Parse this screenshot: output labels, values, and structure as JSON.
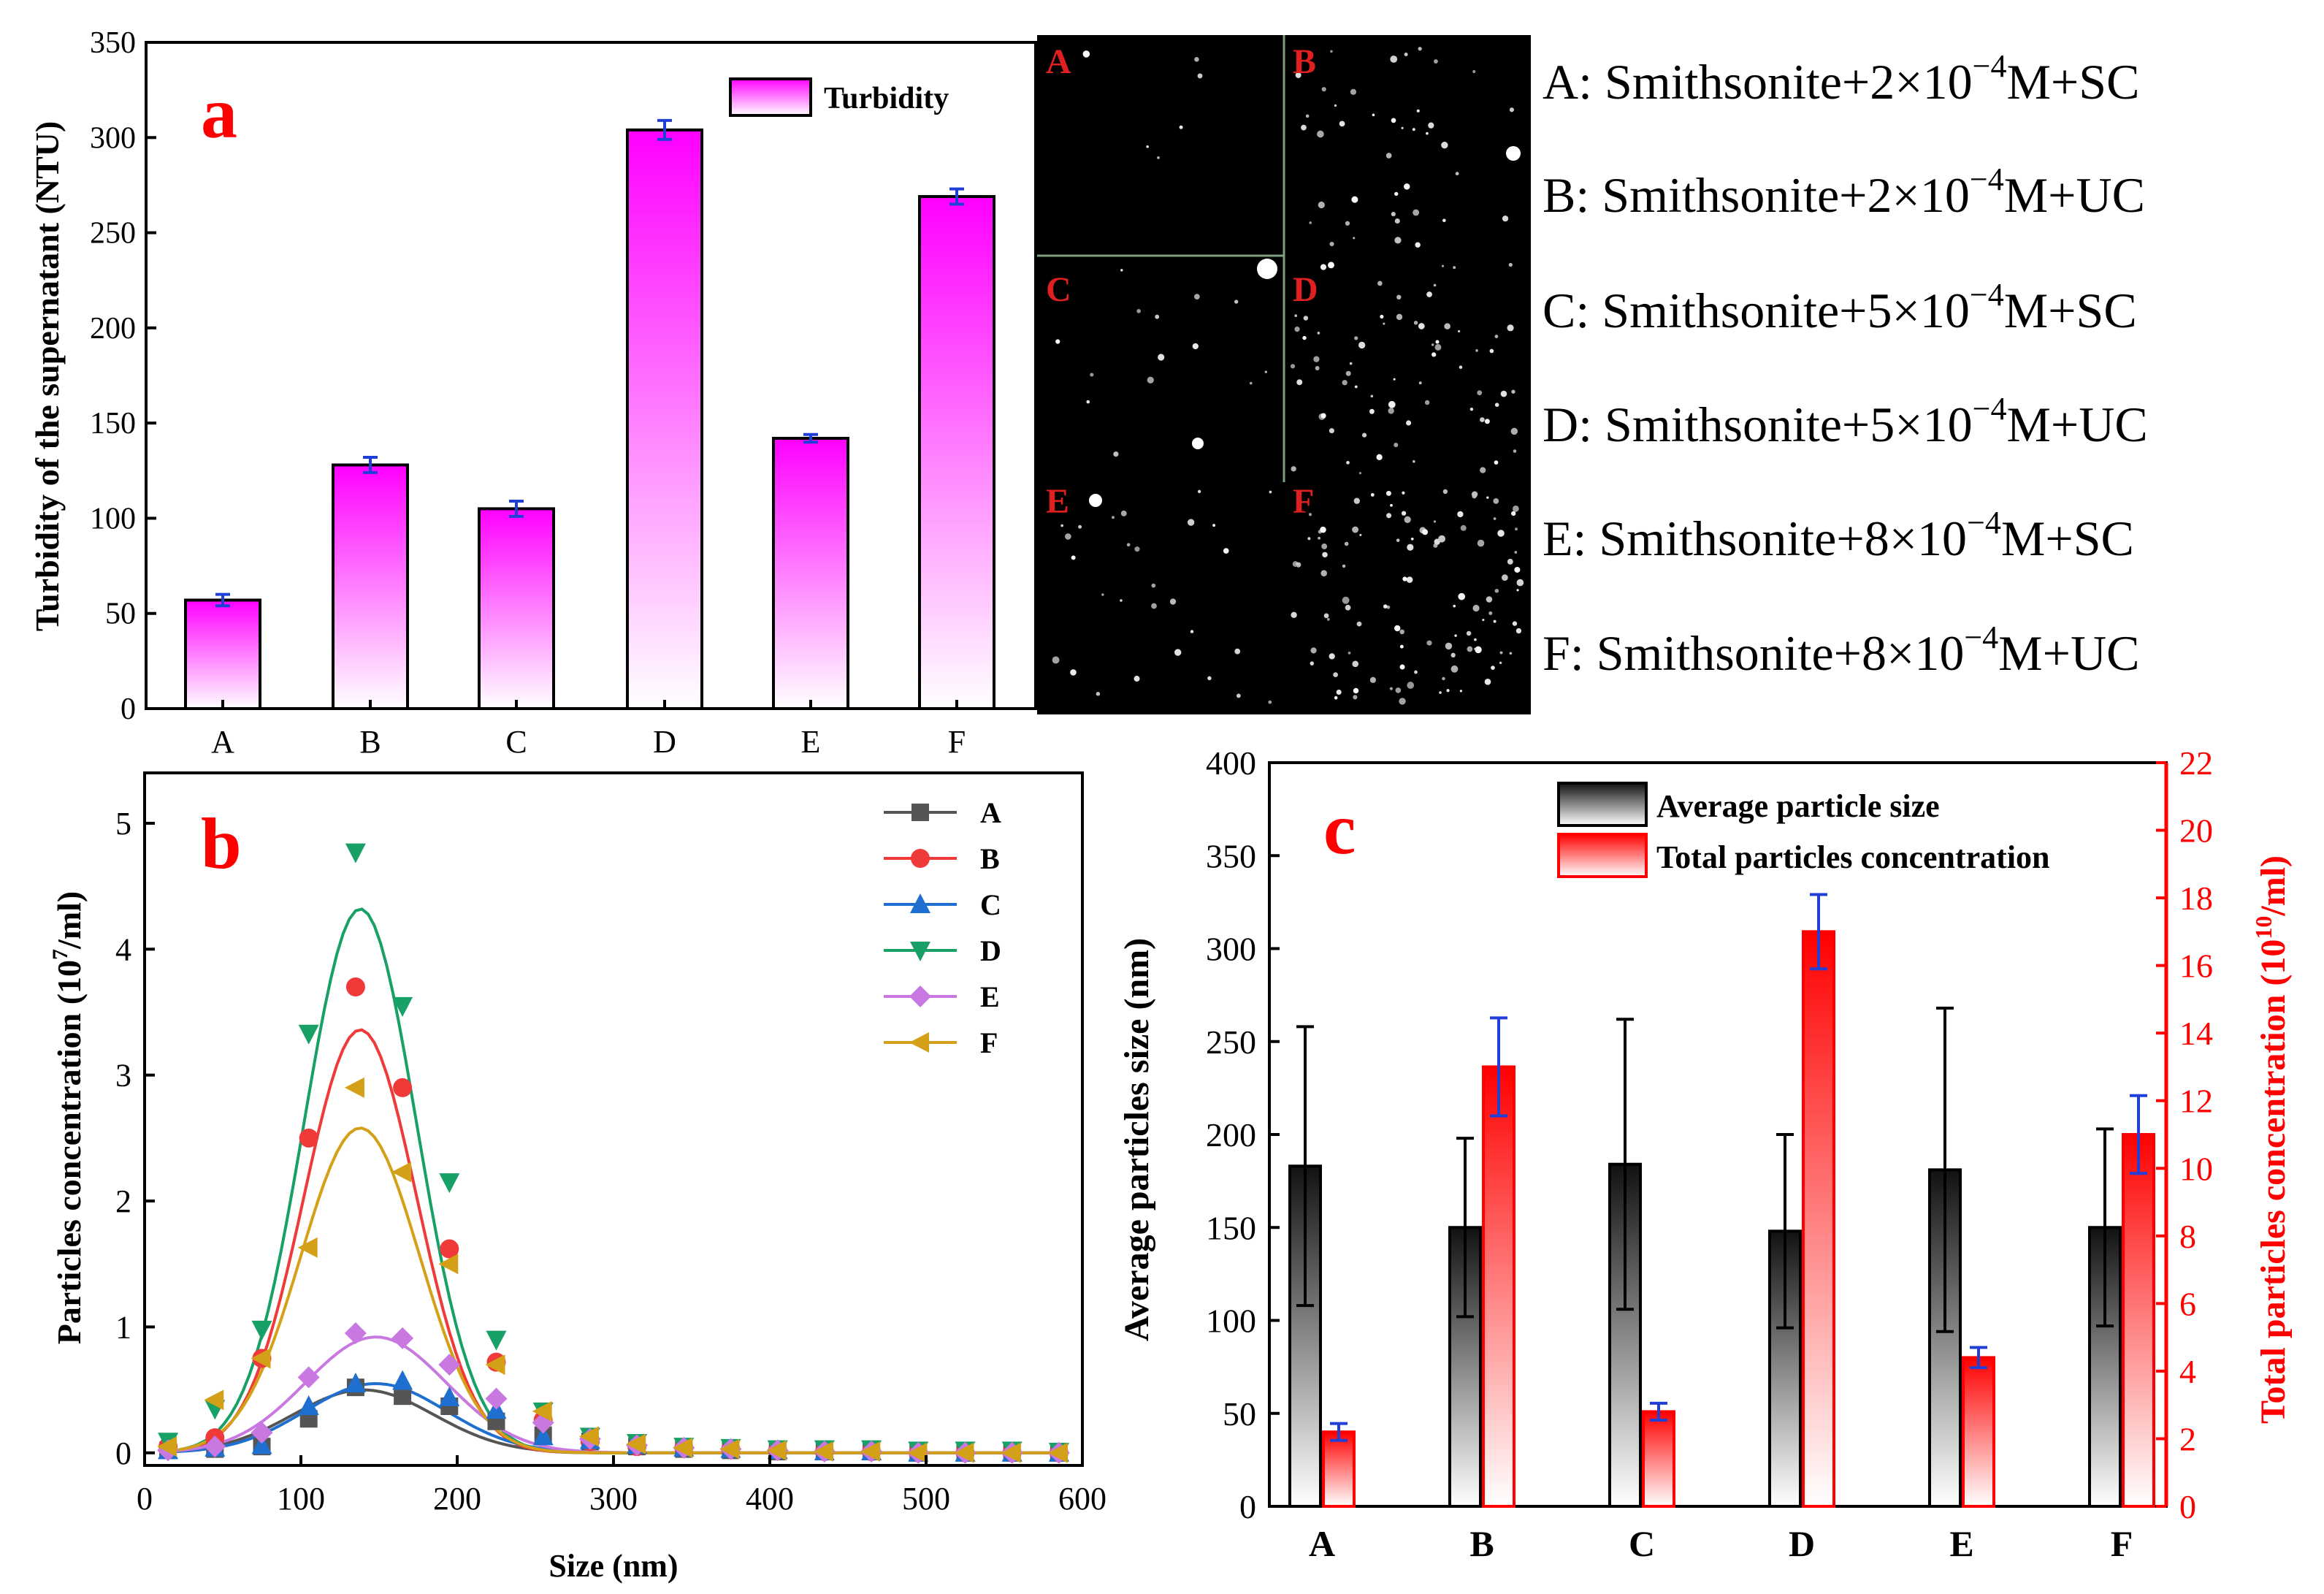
{
  "chart_data": [
    {
      "panel": "a",
      "type": "bar",
      "panel_label": "a",
      "categories": [
        "A",
        "B",
        "C",
        "D",
        "E",
        "F"
      ],
      "series": [
        {
          "name": "Turbidity",
          "values": [
            57,
            128,
            105,
            304,
            142,
            269
          ],
          "errors": [
            3,
            4,
            4,
            5,
            2,
            4
          ]
        }
      ],
      "ylabel": "Turbidity of the supernatant (NTU)",
      "ylim": [
        0,
        350
      ],
      "yticks": [
        "0",
        "50",
        "100",
        "150",
        "200",
        "250",
        "300",
        "350"
      ],
      "legend": "top-right",
      "colors": {
        "bar_top": "#ff00ff",
        "bar_bottom": "#ffffff",
        "error": "#1f3fd6",
        "label": "#ff0000"
      }
    },
    {
      "panel": "b",
      "type": "line",
      "panel_label": "b",
      "xlabel": "Size (nm)",
      "ylabel": "Particles concentration (10",
      "ylabel_sup": "7",
      "ylabel_tail": "/ml)",
      "xlim": [
        0,
        600
      ],
      "ylim": [
        -0.1,
        5.4
      ],
      "xticks": [
        "0",
        "100",
        "200",
        "300",
        "400",
        "500",
        "600"
      ],
      "yticks": [
        "0",
        "1",
        "2",
        "3",
        "4",
        "5"
      ],
      "x": [
        15,
        45,
        75,
        105,
        135,
        165,
        195,
        225,
        255,
        285,
        315,
        345,
        375,
        405,
        435,
        465,
        495,
        525,
        555,
        585
      ],
      "series": [
        {
          "name": "A",
          "marker": "square",
          "color": "#555555",
          "values": [
            0.02,
            0.03,
            0.05,
            0.27,
            0.52,
            0.45,
            0.37,
            0.25,
            0.14,
            0.09,
            0.05,
            0.03,
            0.02,
            0.01,
            0.01,
            0.01,
            0.0,
            0.0,
            0.0,
            0.0
          ],
          "fit_peak": 0.5,
          "fit_center": 140,
          "fit_width": 45
        },
        {
          "name": "B",
          "marker": "circle",
          "color": "#f03a3a",
          "values": [
            0.05,
            0.12,
            0.75,
            2.5,
            3.7,
            2.9,
            1.62,
            0.72,
            0.26,
            0.09,
            0.05,
            0.04,
            0.03,
            0.02,
            0.01,
            0.01,
            0.0,
            0.0,
            0.0,
            0.0
          ],
          "fit_peak": 3.36,
          "fit_center": 138,
          "fit_width": 36
        },
        {
          "name": "C",
          "marker": "triangle",
          "color": "#1f6fd0",
          "values": [
            0.02,
            0.04,
            0.06,
            0.37,
            0.55,
            0.57,
            0.44,
            0.34,
            0.13,
            0.1,
            0.06,
            0.04,
            0.03,
            0.02,
            0.01,
            0.01,
            0.0,
            0.0,
            0.0,
            0.0
          ],
          "fit_peak": 0.55,
          "fit_center": 148,
          "fit_width": 45
        },
        {
          "name": "D",
          "marker": "triangle-down",
          "color": "#18a067",
          "values": [
            0.09,
            0.35,
            0.98,
            3.33,
            4.77,
            3.55,
            2.15,
            0.9,
            0.33,
            0.13,
            0.08,
            0.05,
            0.04,
            0.03,
            0.03,
            0.03,
            0.02,
            0.02,
            0.02,
            0.01
          ],
          "fit_peak": 4.32,
          "fit_center": 138,
          "fit_width": 36
        },
        {
          "name": "E",
          "marker": "diamond",
          "color": "#c878e0",
          "values": [
            0.02,
            0.05,
            0.16,
            0.6,
            0.95,
            0.91,
            0.7,
            0.43,
            0.24,
            0.11,
            0.06,
            0.04,
            0.03,
            0.02,
            0.01,
            0.01,
            0.0,
            0.0,
            0.0,
            0.0
          ],
          "fit_peak": 0.92,
          "fit_center": 148,
          "fit_width": 45
        },
        {
          "name": "F",
          "marker": "triangle-left",
          "color": "#d4a017",
          "values": [
            0.05,
            0.42,
            0.75,
            1.63,
            2.9,
            2.23,
            1.5,
            0.7,
            0.33,
            0.13,
            0.07,
            0.04,
            0.03,
            0.02,
            0.01,
            0.01,
            0.0,
            0.0,
            0.0,
            0.0
          ],
          "fit_peak": 2.58,
          "fit_center": 138,
          "fit_width": 38
        }
      ],
      "legend": "top-right"
    },
    {
      "panel": "c",
      "type": "bar",
      "panel_label": "c",
      "categories": [
        "A",
        "B",
        "C",
        "D",
        "E",
        "F"
      ],
      "series": [
        {
          "name": "Average particle size",
          "axis": "left",
          "values": [
            183,
            150,
            184,
            148,
            181,
            150
          ],
          "errors": [
            75,
            48,
            78,
            52,
            87,
            53
          ],
          "color": "#111111"
        },
        {
          "name": "Total particles concentration",
          "axis": "right",
          "values": [
            2.2,
            13.0,
            2.8,
            17.0,
            4.4,
            11.0
          ],
          "errors": [
            0.25,
            1.45,
            0.25,
            1.1,
            0.3,
            1.15
          ],
          "color": "#ff0000"
        }
      ],
      "ylabel": "Average particles size (nm)",
      "ylim": [
        0,
        400
      ],
      "yticks": [
        "0",
        "50",
        "100",
        "150",
        "200",
        "250",
        "300",
        "350",
        "400"
      ],
      "y2label": "Total particles concentration (10",
      "y2label_sup": "10",
      "y2label_tail": "/ml)",
      "y2lim": [
        0,
        22
      ],
      "y2ticks": [
        "0",
        "2",
        "4",
        "6",
        "8",
        "10",
        "12",
        "14",
        "16",
        "18",
        "20",
        "22"
      ],
      "legend": "top-left"
    }
  ],
  "micrographs": {
    "labels": [
      "A",
      "B",
      "C",
      "D",
      "E",
      "F"
    ]
  },
  "legend_text": [
    {
      "prefix": "A: Smithsonite+2×10",
      "exp": "−4",
      "suffix": "M+SC"
    },
    {
      "prefix": "B: Smithsonite+2×10",
      "exp": "−4",
      "suffix": "M+UC"
    },
    {
      "prefix": "C: Smithsonite+5×10",
      "exp": "−4",
      "suffix": "M+SC"
    },
    {
      "prefix": "D: Smithsonite+5×10",
      "exp": "−4",
      "suffix": "M+UC"
    },
    {
      "prefix": "E: Smithsonite+8×10",
      "exp": "−4",
      "suffix": "M+SC"
    },
    {
      "prefix": "F: Smithsonite+8×10",
      "exp": "−4",
      "suffix": "M+UC"
    }
  ]
}
